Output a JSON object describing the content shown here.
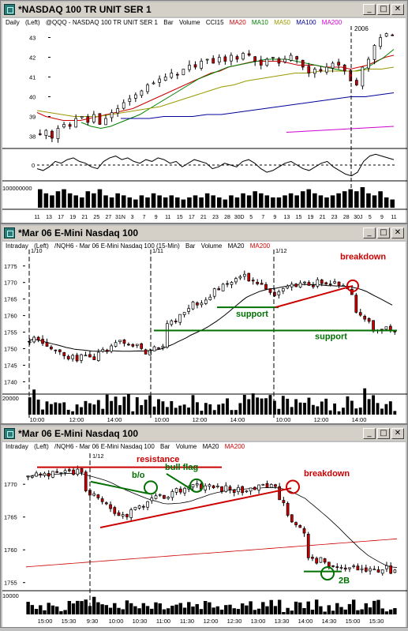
{
  "windows": [
    {
      "title": "*NASDAQ 100 TR UNIT SER 1",
      "header": [
        "Daily",
        "(Left)",
        "@QQQ - NASDAQ 100 TR UNIT SER 1",
        "Bar",
        "Volume",
        "CCI15",
        "MA20",
        "MA10",
        "MA50",
        "MA100",
        "MA200"
      ]
    },
    {
      "title": "*Mar 06  E-Mini Nasdaq 100",
      "header": [
        "Intraday",
        "(Left)",
        "/NQH6 - Mar 06  E-Mini Nasdaq 100 (15-Min)",
        "Bar",
        "Volume",
        "MA20",
        "MA200"
      ]
    },
    {
      "title": "*Mar 06  E-Mini Nasdaq 100",
      "header": [
        "Intraday",
        "(Left)",
        "/NQH6 - Mar 06  E-Mini Nasdaq 100",
        "Bar",
        "Volume",
        "MA20",
        "MA200"
      ]
    }
  ],
  "window_buttons": [
    "_",
    "□",
    "✕"
  ],
  "colors": {
    "ma20": "#cc0000",
    "ma10": "#008000",
    "ma50": "#999900",
    "ma100": "#000099",
    "ma200": "#cc00cc",
    "up": "#ffffff",
    "down": "#cc0000",
    "annot_red": "#cc0000",
    "annot_green": "#007000"
  },
  "chart_data": [
    {
      "type": "candlestick",
      "title": "*NASDAQ 100 TR UNIT SER 1",
      "period": "Daily",
      "ylim": [
        37.5,
        43.5
      ],
      "yticks": [
        38,
        39,
        40,
        41,
        42,
        43
      ],
      "xticks": [
        "11",
        "13",
        "17",
        "19",
        "21",
        "25",
        "27",
        "31N",
        "3",
        "7",
        "9",
        "11",
        "15",
        "17",
        "21",
        "23",
        "28",
        "30D",
        "5",
        "7",
        "9",
        "13",
        "15",
        "19",
        "21",
        "23",
        "28",
        "30J",
        "5",
        "9",
        "11"
      ],
      "annotations": [
        "2006"
      ],
      "close": [
        38.1,
        38.3,
        37.9,
        38.4,
        38.6,
        38.5,
        38.9,
        39.0,
        38.7,
        39.1,
        38.6,
        38.9,
        39.2,
        39.4,
        39.7,
        39.9,
        40.1,
        40.3,
        40.6,
        40.7,
        40.9,
        41.0,
        41.2,
        41.1,
        41.4,
        41.6,
        41.5,
        41.8,
        41.9,
        41.7,
        42.0,
        41.8,
        42.1,
        41.9,
        42.2,
        42.1,
        41.8,
        41.6,
        41.9,
        42.0,
        41.7,
        41.9,
        42.1,
        41.9,
        41.5,
        41.2,
        41.4,
        41.3,
        41.5,
        41.7,
        41.6,
        41.3,
        40.8,
        40.6,
        41.5,
        41.9,
        42.6,
        43.0,
        43.2,
        43.1
      ],
      "cci15": [
        -0.2,
        -0.3,
        -0.1,
        0.2,
        0.1,
        0.3,
        0.4,
        0.2,
        0.1,
        -0.1,
        -0.2,
        0.2,
        0.4,
        0.5,
        0.3,
        0.4,
        0.2,
        0.1,
        0.3,
        0.2,
        0.4,
        0.3,
        0.1,
        0.2,
        -0.1,
        0.1,
        0.3,
        0.2,
        0.1,
        -0.2,
        -0.1,
        0.1,
        0.0,
        -0.1,
        0.2,
        0.3,
        0.1,
        -0.2,
        -0.4,
        -0.3,
        -0.1,
        0.1,
        0.2,
        0.0,
        -0.2,
        -0.3,
        -0.1,
        0.1,
        0.2,
        -0.1,
        -0.3,
        -0.5,
        -0.6,
        -0.4,
        0.2,
        0.5,
        0.6,
        0.5,
        0.4,
        0.3
      ],
      "volume_label": "100000000",
      "volume": [
        0.9,
        0.7,
        0.6,
        0.8,
        0.9,
        0.7,
        0.6,
        0.5,
        0.8,
        0.7,
        0.9,
        0.6,
        0.5,
        0.7,
        0.6,
        0.5,
        0.4,
        0.6,
        0.5,
        0.7,
        0.6,
        0.5,
        0.6,
        0.5,
        0.4,
        0.5,
        0.6,
        0.5,
        0.7,
        0.6,
        0.5,
        0.4,
        0.6,
        0.5,
        0.7,
        0.6,
        0.8,
        0.7,
        0.6,
        0.5,
        0.5,
        0.6,
        0.7,
        0.6,
        0.8,
        0.9,
        0.7,
        0.6,
        0.5,
        0.6,
        0.7,
        0.8,
        0.9,
        0.8,
        1.0,
        0.7,
        0.6,
        0.8,
        0.5,
        0.4
      ],
      "series": [
        {
          "name": "MA20",
          "values": [
            39.2,
            39.0,
            38.9,
            38.8,
            38.8,
            38.8,
            38.9,
            39.0,
            39.1,
            39.2,
            39.3,
            39.4,
            39.6,
            39.8,
            40.0,
            40.2,
            40.4,
            40.6,
            40.8,
            41.0,
            41.2,
            41.3,
            41.5,
            41.6,
            41.7,
            41.8,
            41.8,
            41.8,
            41.8,
            41.7,
            41.6,
            41.6,
            41.6,
            41.5,
            41.5,
            41.5,
            41.4,
            41.5,
            41.6,
            41.8,
            42.0,
            42.1
          ]
        },
        {
          "name": "MA10",
          "values": [
            38.7,
            38.5,
            38.4,
            38.5,
            38.7,
            38.9,
            39.1,
            39.4,
            39.7,
            40.0,
            40.3,
            40.6,
            40.9,
            41.1,
            41.3,
            41.5,
            41.6,
            41.7,
            41.8,
            41.9,
            41.9,
            41.9,
            41.8,
            41.7,
            41.6,
            41.5,
            41.4,
            41.3,
            41.3,
            41.4,
            41.7,
            42.0,
            42.4
          ]
        },
        {
          "name": "MA50",
          "values": [
            39.3,
            39.2,
            39.1,
            39.0,
            39.0,
            39.0,
            39.1,
            39.2,
            39.3,
            39.4,
            39.5,
            39.7,
            39.9,
            40.1,
            40.3,
            40.5,
            40.6,
            40.8,
            40.9,
            41.0,
            41.1,
            41.2,
            41.2,
            41.3,
            41.3,
            41.3,
            41.3,
            41.4,
            41.4,
            41.5
          ]
        },
        {
          "name": "MA100",
          "values": [
            38.9,
            38.9,
            38.9,
            39.0,
            39.0,
            39.0,
            39.1,
            39.1,
            39.2,
            39.3,
            39.4,
            39.5,
            39.6,
            39.7,
            39.8,
            39.9,
            40.0,
            40.0,
            40.1,
            40.2
          ]
        },
        {
          "name": "MA200",
          "values": [
            38.2,
            38.25,
            38.3,
            38.35,
            38.4,
            38.45,
            38.5
          ]
        }
      ]
    },
    {
      "type": "candlestick",
      "title": "*Mar 06  E-Mini Nasdaq 100",
      "period": "15-Min",
      "ylim": [
        1737,
        1779
      ],
      "yticks": [
        1740,
        1745,
        1750,
        1755,
        1760,
        1765,
        1770,
        1775
      ],
      "xticks": [
        "10:00",
        "12:00",
        "14:00",
        "10:00",
        "12:00",
        "14:00",
        "10:00",
        "12:00",
        "14:00"
      ],
      "session_labels": [
        "1/10",
        "1/11",
        "1/12"
      ],
      "annotations": [
        "breakdown",
        "support",
        "support"
      ],
      "volume_label": "20000"
    },
    {
      "type": "candlestick",
      "title": "*Mar 06  E-Mini Nasdaq 100",
      "period": "Intraday",
      "ylim": [
        1754,
        1774
      ],
      "yticks": [
        1755,
        1760,
        1765,
        1770
      ],
      "xticks": [
        "15:00",
        "15:30",
        "9:30",
        "10:00",
        "10:30",
        "11:00",
        "11:30",
        "12:00",
        "12:30",
        "13:00",
        "13:30",
        "14:00",
        "14:30",
        "15:00",
        "15:30"
      ],
      "session_labels": [
        "1/12"
      ],
      "annotations": [
        "resistance",
        "b/o",
        "bull flag",
        "breakdown",
        "2B"
      ],
      "volume_label": "10000"
    }
  ]
}
